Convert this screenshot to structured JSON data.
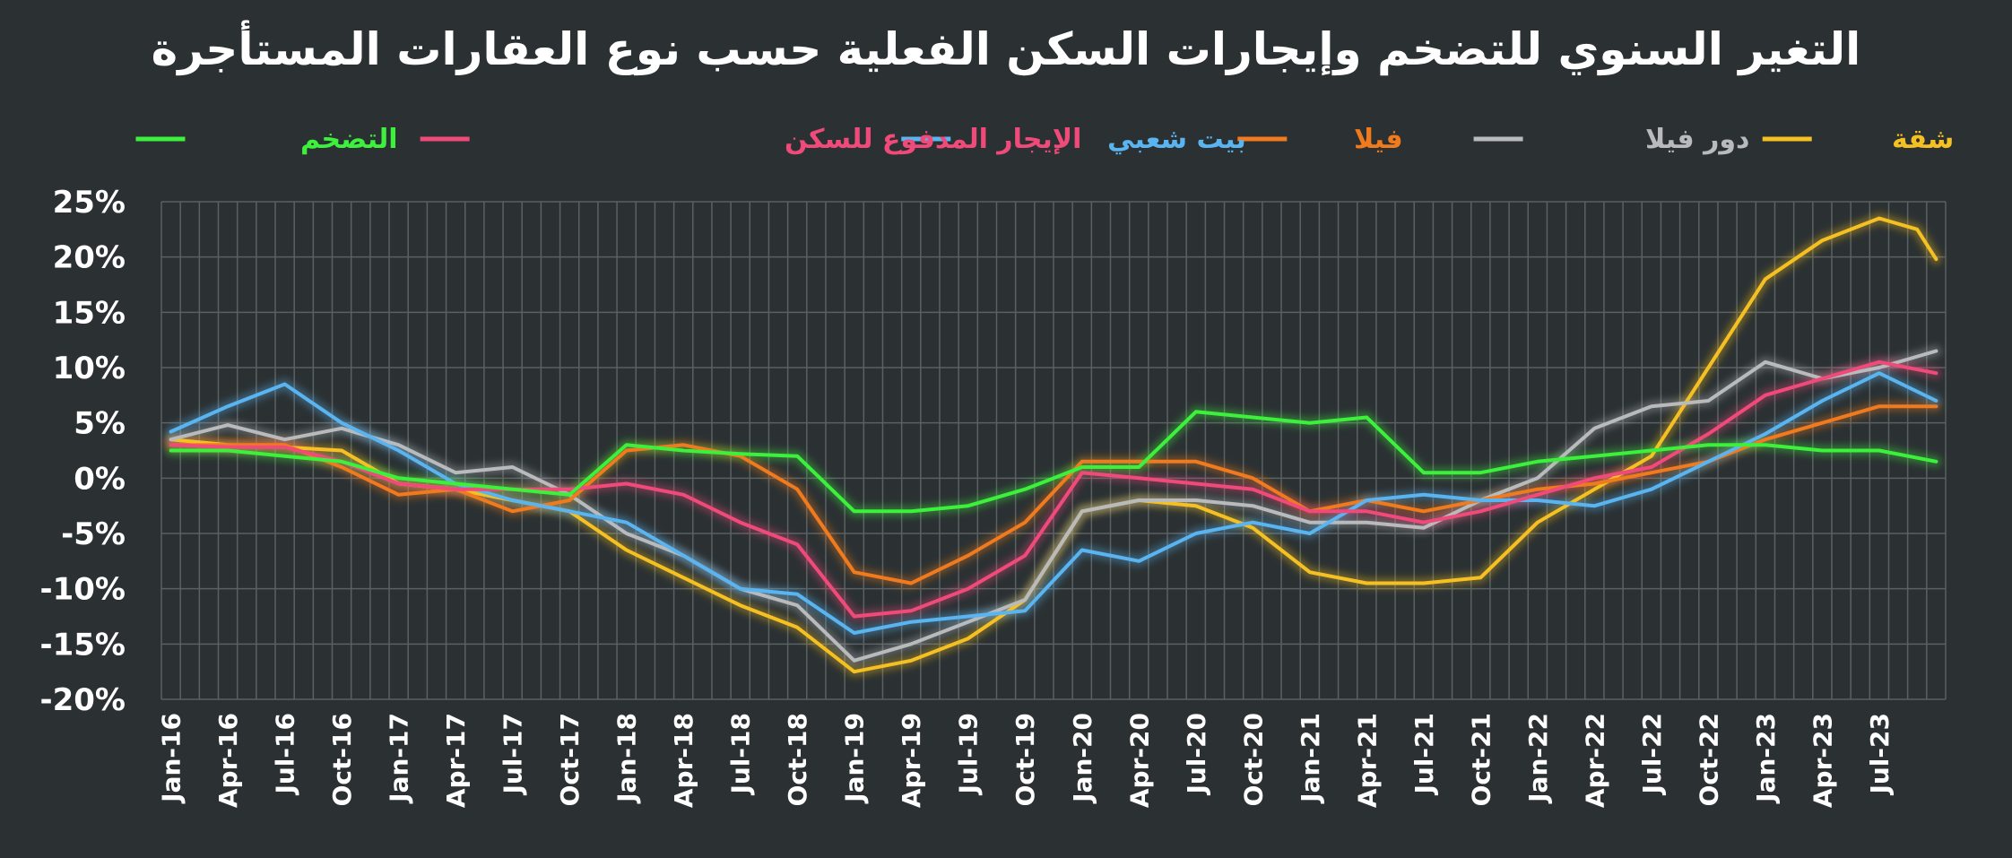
{
  "chart_data": {
    "type": "line",
    "title": "التغير السنوي للتضخم وإيجارات السكن الفعلية حسب نوع العقارات المستأجرة",
    "xlabel": "",
    "ylabel": "",
    "ylim": [
      -20,
      25
    ],
    "yticks": [
      25,
      20,
      15,
      10,
      5,
      0,
      -5,
      -10,
      -15,
      -20
    ],
    "ytick_labels": [
      "25%",
      "20%",
      "15%",
      "10%",
      "5%",
      "0%",
      "-5%",
      "-10%",
      "-15%",
      "-20%"
    ],
    "xticks": [
      "Jan-16",
      "Apr-16",
      "Jul-16",
      "Oct-16",
      "Jan-17",
      "Apr-17",
      "Jul-17",
      "Oct-17",
      "Jan-18",
      "Apr-18",
      "Jul-18",
      "Oct-18",
      "Jan-19",
      "Apr-19",
      "Jul-19",
      "Oct-19",
      "Jan-20",
      "Apr-20",
      "Jul-20",
      "Oct-20",
      "Jan-21",
      "Apr-21",
      "Jul-21",
      "Oct-21",
      "Jan-22",
      "Apr-22",
      "Jul-22",
      "Oct-22",
      "Jan-23",
      "Apr-23",
      "Jul-23"
    ],
    "x_start": "Jan-16",
    "x_end": "Sep-23",
    "grid": true,
    "legend_position": "top",
    "series": [
      {
        "name": "شقة",
        "color": "#f5c022",
        "values": [
          [
            0,
            3.5
          ],
          [
            3,
            3
          ],
          [
            6,
            2.8
          ],
          [
            9,
            2.5
          ],
          [
            12,
            -0.5
          ],
          [
            15,
            -1
          ],
          [
            18,
            -2
          ],
          [
            21,
            -3
          ],
          [
            24,
            -6.5
          ],
          [
            27,
            -9
          ],
          [
            30,
            -11.5
          ],
          [
            33,
            -13.5
          ],
          [
            36,
            -17.5
          ],
          [
            39,
            -16.5
          ],
          [
            42,
            -14.5
          ],
          [
            45,
            -11
          ],
          [
            48,
            -3
          ],
          [
            51,
            -2
          ],
          [
            54,
            -2.5
          ],
          [
            57,
            -4.5
          ],
          [
            60,
            -8.5
          ],
          [
            63,
            -9.5
          ],
          [
            66,
            -9.5
          ],
          [
            69,
            -9
          ],
          [
            72,
            -4
          ],
          [
            75,
            -1
          ],
          [
            78,
            2
          ],
          [
            81,
            10
          ],
          [
            84,
            18
          ],
          [
            87,
            21.5
          ],
          [
            90,
            23.5
          ],
          [
            92,
            22.5
          ],
          [
            93,
            19.8
          ]
        ]
      },
      {
        "name": "دور فيلا",
        "color": "#b8babb",
        "values": [
          [
            0,
            3.5
          ],
          [
            3,
            4.8
          ],
          [
            6,
            3.5
          ],
          [
            9,
            4.5
          ],
          [
            12,
            3
          ],
          [
            15,
            0.5
          ],
          [
            18,
            1
          ],
          [
            21,
            -1.5
          ],
          [
            24,
            -5
          ],
          [
            27,
            -7
          ],
          [
            30,
            -10
          ],
          [
            33,
            -11.5
          ],
          [
            36,
            -16.5
          ],
          [
            39,
            -15
          ],
          [
            42,
            -13
          ],
          [
            45,
            -11
          ],
          [
            48,
            -3
          ],
          [
            51,
            -2
          ],
          [
            54,
            -2
          ],
          [
            57,
            -2.5
          ],
          [
            60,
            -4
          ],
          [
            63,
            -4
          ],
          [
            66,
            -4.5
          ],
          [
            69,
            -2
          ],
          [
            72,
            0
          ],
          [
            75,
            4.5
          ],
          [
            78,
            6.5
          ],
          [
            81,
            7
          ],
          [
            84,
            10.5
          ],
          [
            87,
            9
          ],
          [
            90,
            10
          ],
          [
            93,
            11.5
          ]
        ]
      },
      {
        "name": "فيلا",
        "color": "#f07a1e",
        "values": [
          [
            0,
            3
          ],
          [
            3,
            3
          ],
          [
            6,
            3
          ],
          [
            9,
            1
          ],
          [
            12,
            -1.5
          ],
          [
            15,
            -1
          ],
          [
            18,
            -3
          ],
          [
            21,
            -2
          ],
          [
            24,
            2.5
          ],
          [
            27,
            3
          ],
          [
            30,
            2
          ],
          [
            33,
            -1
          ],
          [
            36,
            -8.5
          ],
          [
            39,
            -9.5
          ],
          [
            42,
            -7
          ],
          [
            45,
            -4
          ],
          [
            48,
            1.5
          ],
          [
            51,
            1.5
          ],
          [
            54,
            1.5
          ],
          [
            57,
            0
          ],
          [
            60,
            -3
          ],
          [
            63,
            -2
          ],
          [
            66,
            -3
          ],
          [
            69,
            -2
          ],
          [
            72,
            -1
          ],
          [
            75,
            -0.5
          ],
          [
            78,
            0.5
          ],
          [
            81,
            1.5
          ],
          [
            84,
            3.5
          ],
          [
            87,
            5
          ],
          [
            90,
            6.5
          ],
          [
            93,
            6.5
          ]
        ]
      },
      {
        "name": "بيت شعبي",
        "color": "#5ab4f0",
        "values": [
          [
            0,
            4.2
          ],
          [
            3,
            6.5
          ],
          [
            6,
            8.5
          ],
          [
            9,
            5
          ],
          [
            12,
            2.5
          ],
          [
            15,
            -0.5
          ],
          [
            18,
            -2
          ],
          [
            21,
            -3
          ],
          [
            24,
            -4
          ],
          [
            27,
            -7
          ],
          [
            30,
            -10
          ],
          [
            33,
            -10.5
          ],
          [
            36,
            -14
          ],
          [
            39,
            -13
          ],
          [
            42,
            -12.5
          ],
          [
            45,
            -12
          ],
          [
            48,
            -6.5
          ],
          [
            51,
            -7.5
          ],
          [
            54,
            -5
          ],
          [
            57,
            -4
          ],
          [
            60,
            -5
          ],
          [
            63,
            -2
          ],
          [
            66,
            -1.5
          ],
          [
            69,
            -2
          ],
          [
            72,
            -2
          ],
          [
            75,
            -2.5
          ],
          [
            78,
            -1
          ],
          [
            81,
            1.5
          ],
          [
            84,
            4
          ],
          [
            87,
            7
          ],
          [
            90,
            9.5
          ],
          [
            93,
            7
          ]
        ]
      },
      {
        "name": "الإيجار المدفوع للسكن",
        "color": "#f04a7a",
        "values": [
          [
            0,
            3
          ],
          [
            3,
            2.8
          ],
          [
            6,
            2.8
          ],
          [
            9,
            1.5
          ],
          [
            12,
            -0.5
          ],
          [
            15,
            -1
          ],
          [
            18,
            -1
          ],
          [
            21,
            -1
          ],
          [
            24,
            -0.5
          ],
          [
            27,
            -1.5
          ],
          [
            30,
            -4
          ],
          [
            33,
            -6
          ],
          [
            36,
            -12.5
          ],
          [
            39,
            -12
          ],
          [
            42,
            -10
          ],
          [
            45,
            -7
          ],
          [
            48,
            0.5
          ],
          [
            51,
            0
          ],
          [
            54,
            -0.5
          ],
          [
            57,
            -1
          ],
          [
            60,
            -3
          ],
          [
            63,
            -3
          ],
          [
            66,
            -4
          ],
          [
            69,
            -3
          ],
          [
            72,
            -1.5
          ],
          [
            75,
            0
          ],
          [
            78,
            1
          ],
          [
            81,
            4
          ],
          [
            84,
            7.5
          ],
          [
            87,
            9
          ],
          [
            90,
            10.5
          ],
          [
            93,
            9.5
          ]
        ]
      },
      {
        "name": "التضخم",
        "color": "#3cf03c",
        "values": [
          [
            0,
            2.5
          ],
          [
            3,
            2.5
          ],
          [
            6,
            2
          ],
          [
            9,
            1.5
          ],
          [
            12,
            0
          ],
          [
            15,
            -0.5
          ],
          [
            18,
            -1
          ],
          [
            21,
            -1.5
          ],
          [
            24,
            3
          ],
          [
            27,
            2.5
          ],
          [
            30,
            2.2
          ],
          [
            33,
            2
          ],
          [
            36,
            -3
          ],
          [
            39,
            -3
          ],
          [
            42,
            -2.5
          ],
          [
            45,
            -1
          ],
          [
            48,
            1
          ],
          [
            51,
            1
          ],
          [
            54,
            6
          ],
          [
            57,
            5.5
          ],
          [
            60,
            5
          ],
          [
            63,
            5.5
          ],
          [
            66,
            0.5
          ],
          [
            69,
            0.5
          ],
          [
            72,
            1.5
          ],
          [
            75,
            2
          ],
          [
            78,
            2.5
          ],
          [
            81,
            3
          ],
          [
            84,
            3
          ],
          [
            87,
            2.5
          ],
          [
            90,
            2.5
          ],
          [
            93,
            1.5
          ]
        ]
      }
    ]
  }
}
